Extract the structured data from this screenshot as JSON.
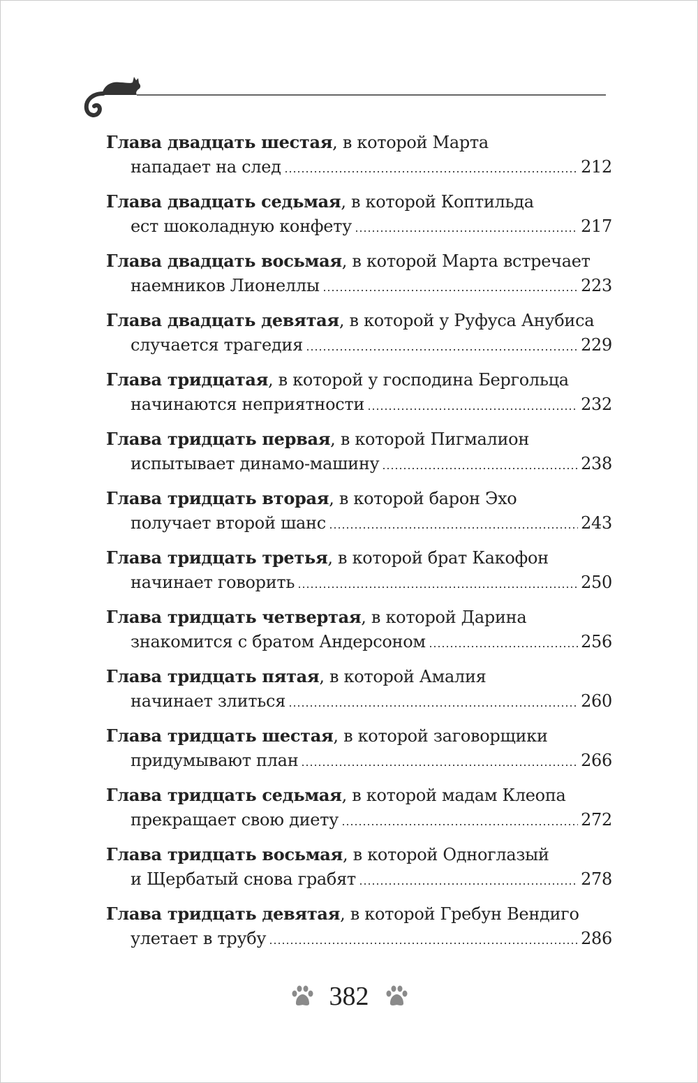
{
  "header": {
    "ornament": "cat-on-line"
  },
  "toc": [
    {
      "title": "Глава двадцать шестая",
      "rest": ", в которой Марта",
      "line2": "нападает на след",
      "page": "212"
    },
    {
      "title": "Глава двадцать седьмая",
      "rest": ", в которой Коптильда",
      "line2": "ест шоколадную конфету",
      "page": "217"
    },
    {
      "title": "Глава двадцать восьмая",
      "rest": ", в которой Марта встречает",
      "line2": "наемников Лионеллы",
      "page": "223"
    },
    {
      "title": "Глава двадцать девятая",
      "rest": ", в которой у Руфуса Анубиса",
      "line2": "случается трагедия",
      "page": "229"
    },
    {
      "title": "Глава тридцатая",
      "rest": ", в которой у господина Бергольца",
      "line2": "начинаются неприятности",
      "page": "232"
    },
    {
      "title": "Глава тридцать первая",
      "rest": ", в которой Пигмалион",
      "line2": "испытывает динамо-машину",
      "page": "238"
    },
    {
      "title": "Глава тридцать вторая",
      "rest": ", в которой барон Эхо",
      "line2": "получает второй шанс",
      "page": "243"
    },
    {
      "title": "Глава тридцать третья",
      "rest": ", в которой брат Какофон",
      "line2": "начинает говорить",
      "page": "250"
    },
    {
      "title": "Глава тридцать четвертая",
      "rest": ", в которой Дарина",
      "line2": "знакомится с братом Андерсоном",
      "page": "256"
    },
    {
      "title": "Глава тридцать пятая",
      "rest": ", в которой Амалия",
      "line2": "начинает злиться",
      "page": "260"
    },
    {
      "title": "Глава тридцать шестая",
      "rest": ", в которой заговорщики",
      "line2": "придумывают план",
      "page": "266"
    },
    {
      "title": "Глава тридцать седьмая",
      "rest": ", в которой мадам Клеопа",
      "line2": "прекращает свою диету",
      "page": "272"
    },
    {
      "title": "Глава тридцать восьмая",
      "rest": ", в которой Одноглазый",
      "line2": "и Щербатый снова грабят",
      "page": "278"
    },
    {
      "title": "Глава тридцать девятая",
      "rest": ", в которой Гребун Вендиго",
      "line2": "улетает в трубу",
      "page": "286"
    }
  ],
  "footer": {
    "page_number": "382",
    "icons": [
      "paw-icon",
      "paw-icon"
    ],
    "icon_color": "#8a8a8a"
  }
}
